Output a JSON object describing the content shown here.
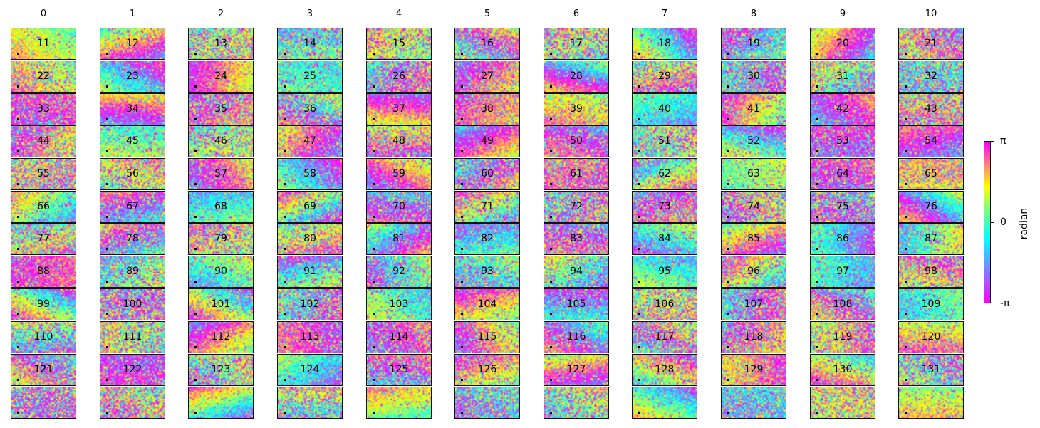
{
  "chart_data": {
    "type": "heatmap",
    "layout": "small-multiples grid of interferogram phase images, 11 columns x 12 rows",
    "column_headers": [
      "0",
      "1",
      "2",
      "3",
      "4",
      "5",
      "6",
      "7",
      "8",
      "9",
      "10"
    ],
    "panel_labels": [
      [
        "11",
        "12",
        "13",
        "14",
        "15",
        "16",
        "17",
        "18",
        "19",
        "20",
        "21"
      ],
      [
        "22",
        "23",
        "24",
        "25",
        "26",
        "27",
        "28",
        "29",
        "30",
        "31",
        "32"
      ],
      [
        "33",
        "34",
        "35",
        "36",
        "37",
        "38",
        "39",
        "40",
        "41",
        "42",
        "43"
      ],
      [
        "44",
        "45",
        "46",
        "47",
        "48",
        "49",
        "50",
        "51",
        "52",
        "53",
        "54"
      ],
      [
        "55",
        "56",
        "57",
        "58",
        "59",
        "60",
        "61",
        "62",
        "63",
        "64",
        "65"
      ],
      [
        "66",
        "67",
        "68",
        "69",
        "70",
        "71",
        "72",
        "73",
        "74",
        "75",
        "76"
      ],
      [
        "77",
        "78",
        "79",
        "80",
        "81",
        "82",
        "83",
        "84",
        "85",
        "86",
        "87"
      ],
      [
        "88",
        "89",
        "90",
        "91",
        "92",
        "93",
        "94",
        "95",
        "96",
        "97",
        "98"
      ],
      [
        "99",
        "100",
        "101",
        "102",
        "103",
        "104",
        "105",
        "106",
        "107",
        "108",
        "109"
      ],
      [
        "110",
        "111",
        "112",
        "113",
        "114",
        "115",
        "116",
        "117",
        "118",
        "119",
        "120"
      ],
      [
        "121",
        "122",
        "123",
        "124",
        "125",
        "126",
        "127",
        "128",
        "129",
        "130",
        "131"
      ],
      [
        "",
        "",
        "",
        "",
        "",
        "",
        "",
        "",
        "",
        "",
        ""
      ]
    ],
    "colorbar": {
      "label": "radian",
      "ticks": [
        "π",
        "0",
        "-π"
      ],
      "range": [
        "-π",
        "π"
      ],
      "colormap": [
        "#ff00ff",
        "#7f7fff",
        "#00ffff",
        "#7fff7f",
        "#ffff00",
        "#ff7f7f",
        "#ff00ff"
      ]
    },
    "reference_point_marker": "black square in lower-left of each panel"
  }
}
